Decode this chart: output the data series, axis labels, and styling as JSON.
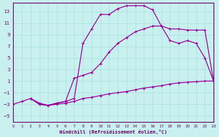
{
  "xlabel": "Windchill (Refroidissement éolien,°C)",
  "background_color": "#c8f0ee",
  "line_color": "#990099",
  "grid_color": "#aadddd",
  "axis_color": "#660066",
  "xlim": [
    0,
    23
  ],
  "ylim": [
    -6,
    14.5
  ],
  "xticks": [
    0,
    1,
    2,
    3,
    4,
    5,
    6,
    7,
    8,
    9,
    10,
    11,
    12,
    13,
    14,
    15,
    16,
    17,
    18,
    19,
    20,
    21,
    22,
    23
  ],
  "yticks": [
    -5,
    -3,
    -1,
    1,
    3,
    5,
    7,
    9,
    11,
    13
  ],
  "line1_x": [
    2,
    3,
    4,
    5,
    6,
    7,
    8,
    9,
    10,
    11,
    12,
    13,
    14,
    15,
    16,
    17,
    18,
    19,
    20,
    21,
    22,
    23
  ],
  "line1_y": [
    -2.0,
    -3.0,
    -3.2,
    -2.8,
    -2.5,
    -2.0,
    7.5,
    10.0,
    12.5,
    12.5,
    13.5,
    14.0,
    14.0,
    14.0,
    13.3,
    10.5,
    10.0,
    10.0,
    9.8,
    9.8,
    9.8,
    1.0
  ],
  "line2_x": [
    2,
    3,
    4,
    5,
    6,
    7,
    8,
    9,
    10,
    11,
    12,
    13,
    14,
    15,
    16,
    17,
    18,
    19,
    20,
    21,
    22,
    23
  ],
  "line2_y": [
    -2.0,
    -3.0,
    -3.2,
    -2.8,
    -2.5,
    1.5,
    2.0,
    2.5,
    4.0,
    6.0,
    7.5,
    8.5,
    9.5,
    10.0,
    10.5,
    10.5,
    8.0,
    7.5,
    8.0,
    7.5,
    5.0,
    1.0
  ],
  "line3_x": [
    0,
    1,
    2,
    3,
    4,
    5,
    6,
    7,
    8,
    9,
    10,
    11,
    12,
    13,
    14,
    15,
    16,
    17,
    18,
    19,
    20,
    21,
    22,
    23
  ],
  "line3_y": [
    -3.0,
    -2.5,
    -2.0,
    -2.8,
    -3.2,
    -3.0,
    -2.8,
    -2.5,
    -2.0,
    -1.8,
    -1.5,
    -1.2,
    -1.0,
    -0.8,
    -0.5,
    -0.2,
    0.0,
    0.2,
    0.5,
    0.7,
    0.8,
    0.9,
    1.0,
    1.0
  ]
}
